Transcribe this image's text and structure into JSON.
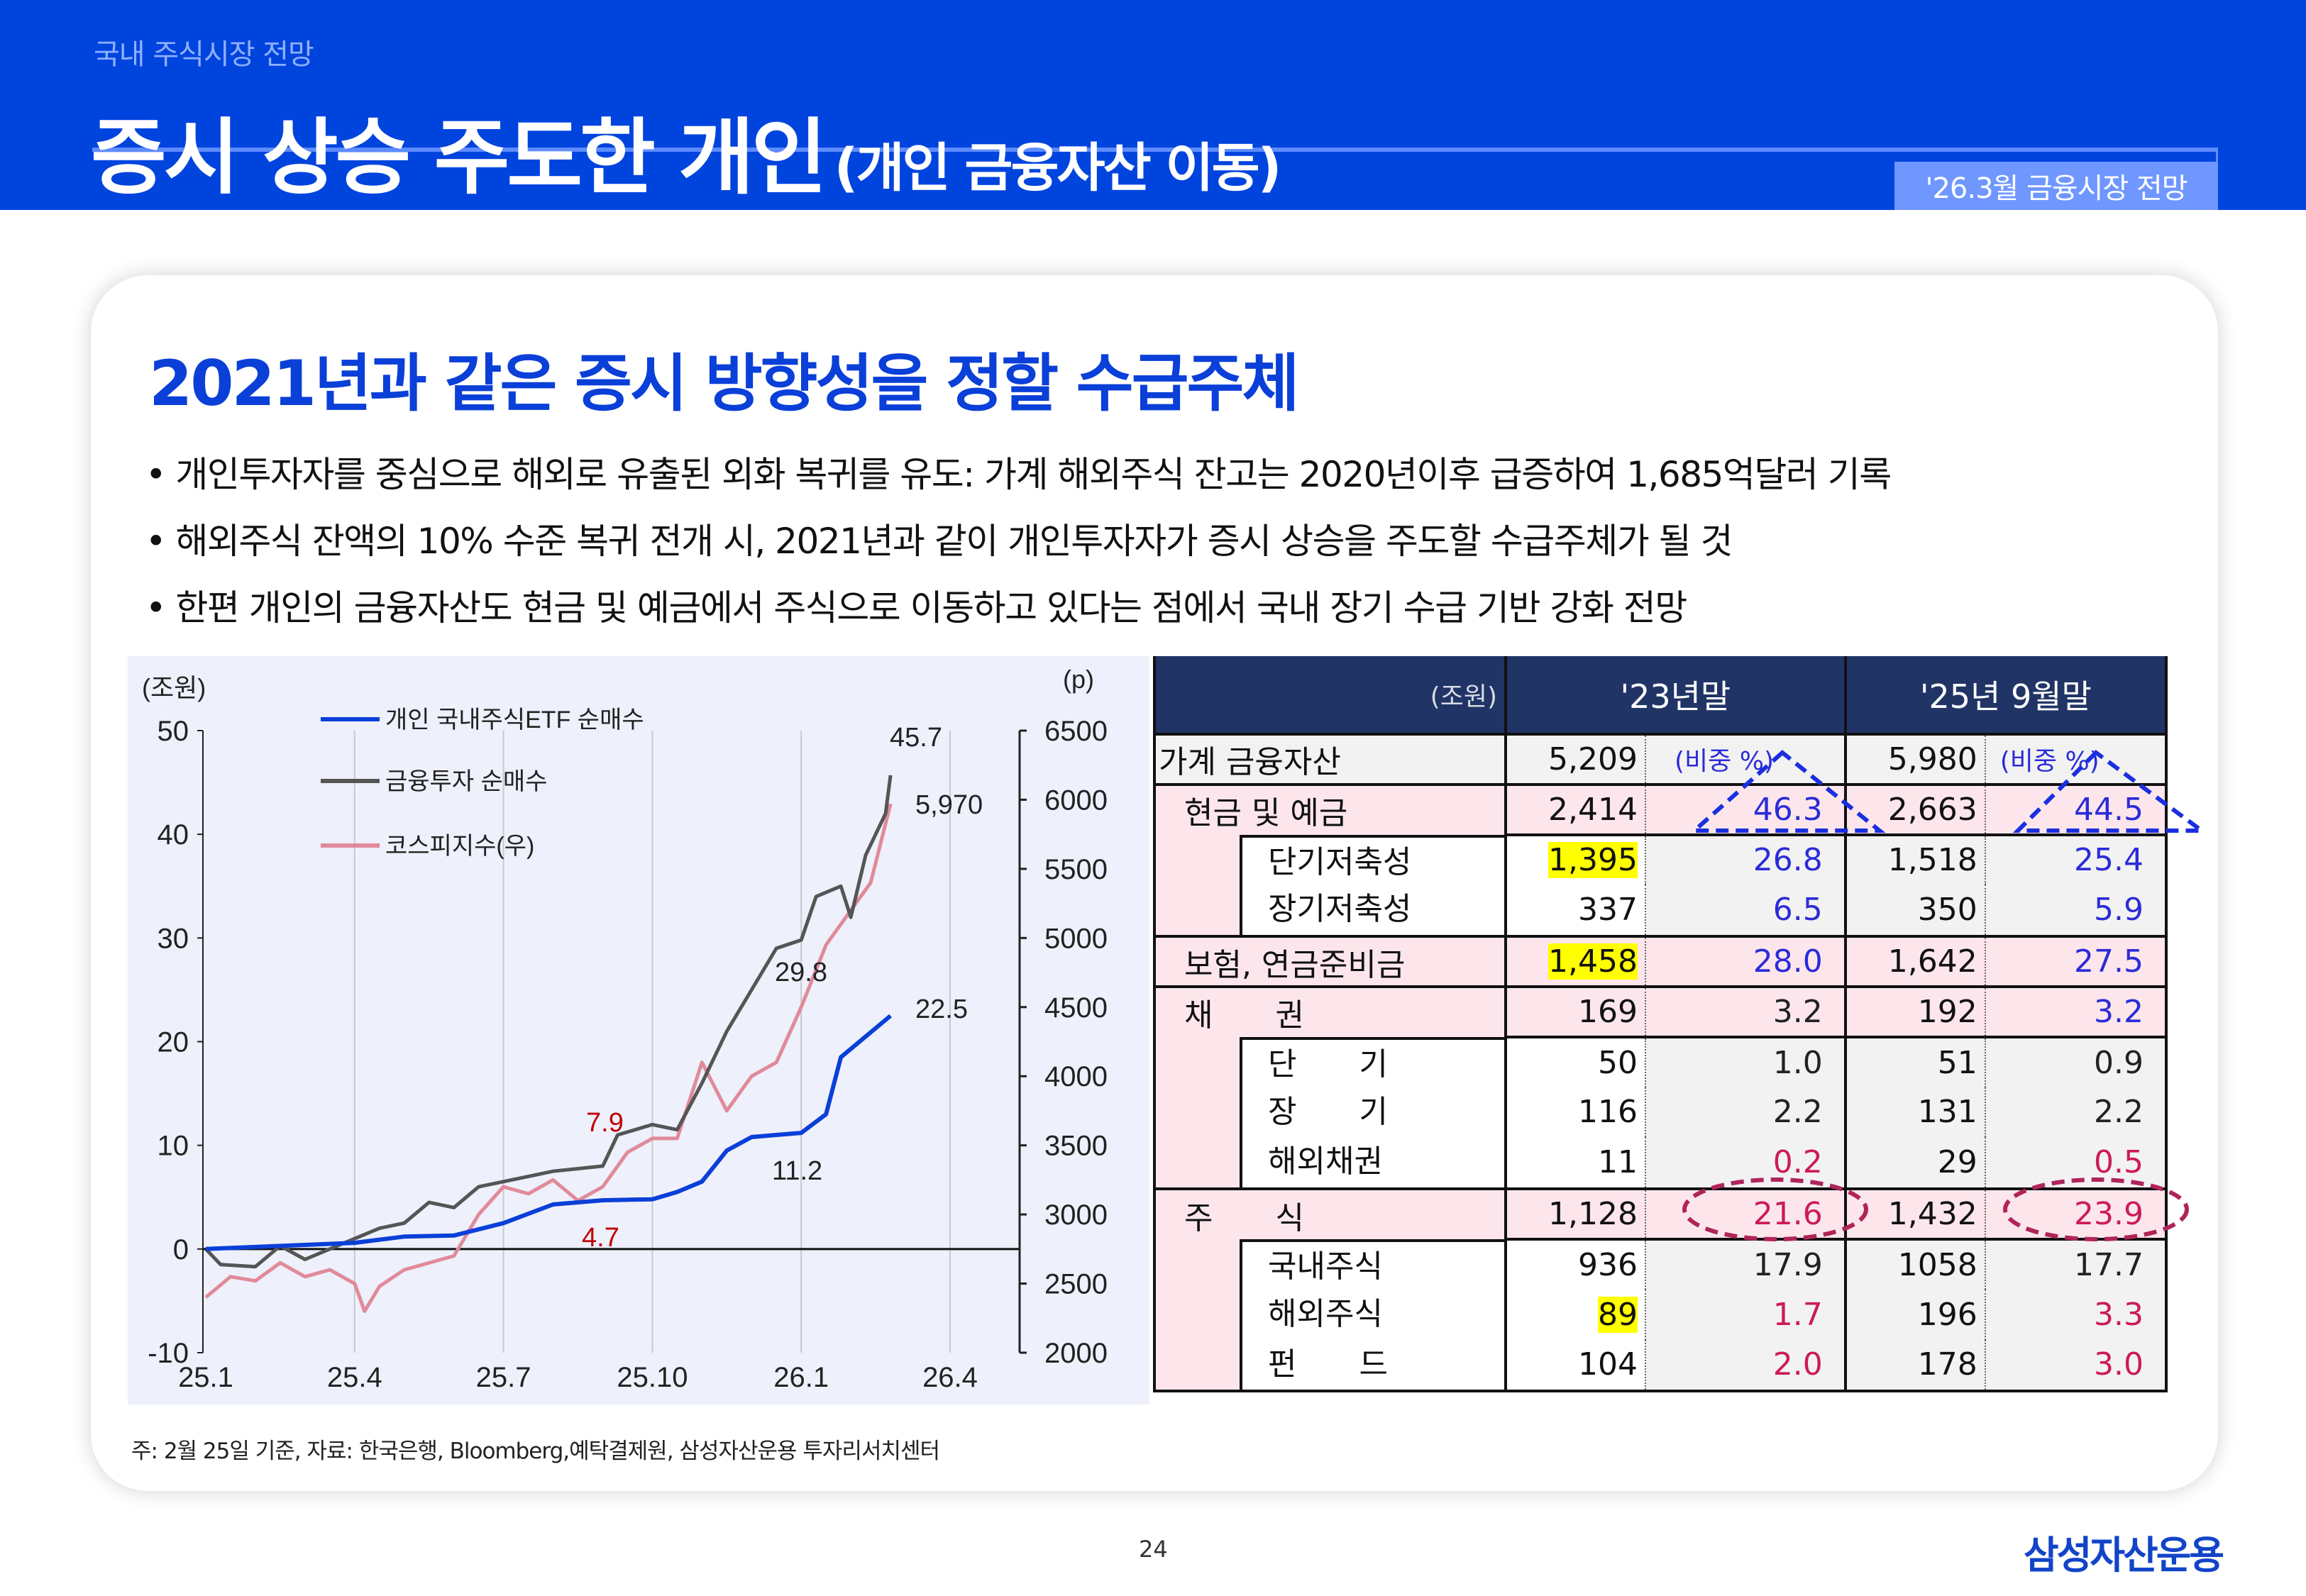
{
  "header": {
    "section": "국내 주식시장 전망",
    "title": "증시 상승 주도한 개인",
    "title_sub": "(개인 금융자산 이동)",
    "badge": "'26.3월 금융시장 전망",
    "brand_color": "#0044de"
  },
  "main": {
    "heading": "2021년과 같은 증시 방향성을 정할 수급주체",
    "bullets": [
      "• 개인투자자를 중심으로 해외로 유출된 외화 복귀를 유도: 가계 해외주식 잔고는 2020년이후 급증하여 1,685억달러 기록",
      "• 해외주식 잔액의 10% 수준 복귀 전개 시, 2021년과 같이 개인투자자가 증시 상승을 주도할 수급주체가 될 것",
      "• 한편 개인의 금융자산도 현금 및 예금에서 주식으로 이동하고 있다는 점에서 국내 장기 수급 기반 강화 전망"
    ]
  },
  "chart_data": {
    "type": "line",
    "left_unit": "(조원)",
    "right_unit": "(p)",
    "x_ticks": [
      "25.1",
      "25.4",
      "25.7",
      "25.10",
      "26.1",
      "26.4"
    ],
    "y_left_ticks": [
      "50",
      "40",
      "30",
      "20",
      "10",
      "0",
      "-10"
    ],
    "y_right_ticks": [
      "6500",
      "6000",
      "5500",
      "5000",
      "4500",
      "4000",
      "3500",
      "3000",
      "2500",
      "2000"
    ],
    "ylim_left": [
      -10,
      50
    ],
    "ylim_right": [
      2000,
      6500
    ],
    "grid": "vertical",
    "legend_position": "top-left",
    "series": [
      {
        "name": "개인 국내주식ETF 순매수",
        "axis": "left",
        "color": "#0a3fd8",
        "x": [
          "25.1",
          "25.2",
          "25.3",
          "25.4",
          "25.5",
          "25.6",
          "25.7",
          "25.8",
          "25.9",
          "25.10",
          "25.10(m)",
          "25.11",
          "25.11(m)",
          "25.12",
          "25.12(m)",
          "26.1",
          "26.1(m)",
          "26.1(e)",
          "26.2",
          "26.2(e)"
        ],
        "m": [
          0,
          1,
          2,
          3,
          4,
          5,
          6,
          7,
          8,
          9,
          9.5,
          10,
          10.5,
          11,
          11.5,
          12,
          12.5,
          12.8,
          13.3,
          13.8
        ],
        "values": [
          0,
          0.2,
          0.4,
          0.6,
          1.2,
          1.3,
          2.5,
          4.3,
          4.7,
          4.8,
          5.5,
          6.5,
          9.5,
          10.8,
          11,
          11.2,
          13,
          18.5,
          20.5,
          22.5
        ]
      },
      {
        "name": "금융투자 순매수",
        "axis": "left",
        "color": "#555555",
        "m": [
          0,
          0.3,
          1,
          1.5,
          2,
          2.5,
          3,
          3.5,
          4,
          4.5,
          5,
          5.5,
          6,
          7,
          8,
          8.3,
          9,
          9.5,
          10,
          10.5,
          11,
          11.5,
          12,
          12.3,
          12.8,
          13,
          13.3,
          13.7,
          13.8
        ],
        "values": [
          0,
          -1.5,
          -1.7,
          0.3,
          -1,
          0,
          1,
          2,
          2.5,
          4.5,
          4,
          6,
          6.5,
          7.5,
          8,
          11,
          12,
          11.5,
          16,
          21,
          25,
          29,
          29.8,
          34,
          35,
          32,
          38,
          42,
          45.7
        ]
      },
      {
        "name": "코스피지수(우)",
        "axis": "right",
        "color": "#e08a9a",
        "m": [
          0,
          0.5,
          1,
          1.5,
          2,
          2.5,
          3,
          3.2,
          3.5,
          4,
          5,
          5.5,
          6,
          6.5,
          7,
          7.5,
          8,
          8.5,
          9,
          9.5,
          10,
          10.5,
          11,
          11.5,
          12,
          12.5,
          13,
          13.4,
          13.8
        ],
        "values": [
          2400,
          2550,
          2520,
          2650,
          2550,
          2600,
          2500,
          2300,
          2480,
          2600,
          2700,
          3000,
          3200,
          3150,
          3250,
          3100,
          3200,
          3450,
          3550,
          3550,
          4100,
          3750,
          4000,
          4100,
          4500,
          4950,
          5200,
          5400,
          5970
        ]
      }
    ],
    "annotations": [
      {
        "text": "45.7",
        "color": "#222222"
      },
      {
        "text": "5,970",
        "color": "#222222"
      },
      {
        "text": "29.8",
        "color": "#222222"
      },
      {
        "text": "22.5",
        "color": "#222222"
      },
      {
        "text": "11.2",
        "color": "#222222"
      },
      {
        "text": "7.9",
        "color": "#c00000"
      },
      {
        "text": "4.7",
        "color": "#c00000"
      }
    ]
  },
  "table": {
    "unit": "(조원)",
    "col1": "'23년말",
    "col2": "'25년 9월말",
    "rows": [
      {
        "label": "가계 금융자산",
        "level": "top0",
        "v1": "5,209",
        "r1": "(비중 %)",
        "v2": "5,980",
        "r2": "(비중 %)",
        "c1": "#2b2bd9",
        "c2": "#2b2bd9"
      },
      {
        "label": "현금 및 예금",
        "level": "top",
        "v1": "2,414",
        "r1": "46.3",
        "v2": "2,663",
        "r2": "44.5",
        "c1": "#2b2bd9",
        "c2": "#2b2bd9"
      },
      {
        "label": "단기저축성",
        "level": "sub",
        "v1": "1,395",
        "r1": "26.8",
        "v2": "1,518",
        "r2": "25.4",
        "c1": "#2b2bd9",
        "c2": "#2b2bd9",
        "hl": true
      },
      {
        "label": "장기저축성",
        "level": "sub",
        "v1": "337",
        "r1": "6.5",
        "v2": "350",
        "r2": "5.9",
        "c1": "#2b2bd9",
        "c2": "#2b2bd9"
      },
      {
        "label": "보험, 연금준비금",
        "level": "top",
        "v1": "1,458",
        "r1": "28.0",
        "v2": "1,642",
        "r2": "27.5",
        "c1": "#2b2bd9",
        "c2": "#2b2bd9",
        "hl": true
      },
      {
        "label": "채　　권",
        "level": "top",
        "v1": "169",
        "r1": "3.2",
        "v2": "192",
        "r2": "3.2",
        "c1": "#222222",
        "c2": "#2b2bd9"
      },
      {
        "label": "단　　기",
        "level": "sub",
        "v1": "50",
        "r1": "1.0",
        "v2": "51",
        "r2": "0.9",
        "c1": "#222222",
        "c2": "#222222"
      },
      {
        "label": "장　　기",
        "level": "sub",
        "v1": "116",
        "r1": "2.2",
        "v2": "131",
        "r2": "2.2",
        "c1": "#222222",
        "c2": "#222222"
      },
      {
        "label": "해외채권",
        "level": "sub",
        "v1": "11",
        "r1": "0.2",
        "v2": "29",
        "r2": "0.5",
        "c1": "#cc1a5a",
        "c2": "#cc1a5a"
      },
      {
        "label": "주　　식",
        "level": "top",
        "v1": "1,128",
        "r1": "21.6",
        "v2": "1,432",
        "r2": "23.9",
        "c1": "#cc1a5a",
        "c2": "#cc1a5a"
      },
      {
        "label": "국내주식",
        "level": "sub",
        "v1": "936",
        "r1": "17.9",
        "v2": "1058",
        "r2": "17.7",
        "c1": "#222222",
        "c2": "#222222"
      },
      {
        "label": "해외주식",
        "level": "sub",
        "v1": "89",
        "r1": "1.7",
        "v2": "196",
        "r2": "3.3",
        "c1": "#cc1a5a",
        "c2": "#cc1a5a",
        "hl": true
      },
      {
        "label": "펀　　드",
        "level": "sub",
        "v1": "104",
        "r1": "2.0",
        "v2": "178",
        "r2": "3.0",
        "c1": "#cc1a5a",
        "c2": "#cc1a5a"
      }
    ]
  },
  "footnote": "주: 2월 25일 기준,  자료: 한국은행, Bloomberg,예탁결제원,  삼성자산운용 투자리서치센터",
  "page_number": "24",
  "logo": "삼성자산운용"
}
